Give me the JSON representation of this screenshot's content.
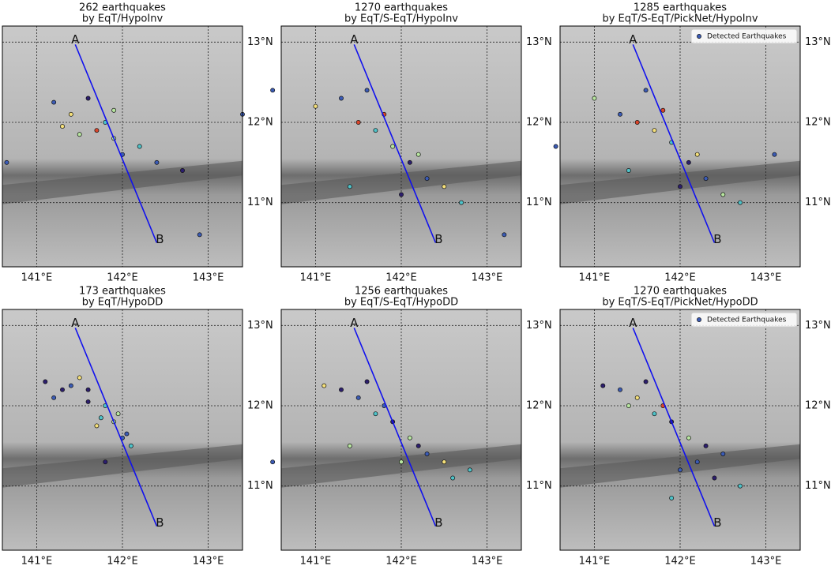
{
  "chart_data": [
    {
      "type": "scatter",
      "title": "262 earthquakes",
      "subtitle": "by EqT/HypoInv",
      "x": [
        141.2,
        141.4,
        141.6,
        141.8,
        141.9,
        142.0,
        141.7,
        141.5,
        142.2,
        142.4,
        141.3,
        140.65,
        143.4,
        142.9,
        142.7,
        141.9
      ],
      "y": [
        12.25,
        12.1,
        12.3,
        12.0,
        11.8,
        11.6,
        11.9,
        11.85,
        11.7,
        11.5,
        11.95,
        11.5,
        12.1,
        10.6,
        11.4,
        12.15
      ],
      "colors": [
        "#3b5bb5",
        "#f5e07a",
        "#2c1e6e",
        "#4fc3c9",
        "#b8e6a0",
        "#3b5bb5",
        "#d9452b",
        "#b8e6a0",
        "#4fc3c9",
        "#3b5bb5",
        "#f5e07a",
        "#3b5bb5",
        "#3b5bb5",
        "#3b5bb5",
        "#2c1e6e",
        "#b8e6a0"
      ]
    },
    {
      "type": "scatter",
      "title": "1270 earthquakes",
      "subtitle": "by EqT/S-EqT/HypoInv",
      "x": [
        141.0,
        141.3,
        141.5,
        141.7,
        141.9,
        142.1,
        142.3,
        142.5,
        142.7,
        141.6,
        141.8,
        142.0,
        142.2,
        140.5,
        143.2,
        141.4
      ],
      "y": [
        12.2,
        12.3,
        12.0,
        11.9,
        11.7,
        11.5,
        11.3,
        11.2,
        11.0,
        12.4,
        12.1,
        11.1,
        11.6,
        12.4,
        10.6,
        11.2
      ],
      "colors": [
        "#f5e07a",
        "#3b5bb5",
        "#d9452b",
        "#4fc3c9",
        "#b8e6a0",
        "#2c1e6e",
        "#3b5bb5",
        "#f5e07a",
        "#4fc3c9",
        "#3b5bb5",
        "#d9452b",
        "#2c1e6e",
        "#b8e6a0",
        "#3b5bb5",
        "#3b5bb5",
        "#4fc3c9"
      ]
    },
    {
      "type": "scatter",
      "title": "1285 earthquakes",
      "subtitle": "by EqT/S-EqT/PickNet/HypoInv",
      "x": [
        141.0,
        141.3,
        141.5,
        141.7,
        141.9,
        142.1,
        142.3,
        142.5,
        142.7,
        141.6,
        141.8,
        142.0,
        142.2,
        140.55,
        143.1,
        141.4
      ],
      "y": [
        12.3,
        12.1,
        12.0,
        11.9,
        11.75,
        11.5,
        11.3,
        11.1,
        11.0,
        12.4,
        12.15,
        11.2,
        11.6,
        11.7,
        11.6,
        11.4
      ],
      "colors": [
        "#b8e6a0",
        "#3b5bb5",
        "#d9452b",
        "#f5e07a",
        "#4fc3c9",
        "#2c1e6e",
        "#3b5bb5",
        "#b8e6a0",
        "#4fc3c9",
        "#3b5bb5",
        "#d9452b",
        "#2c1e6e",
        "#f5e07a",
        "#3b5bb5",
        "#3b5bb5",
        "#4fc3c9"
      ],
      "series_name": "Detected Earthquakes",
      "legend": "upper right"
    },
    {
      "type": "scatter",
      "title": "173 earthquakes",
      "subtitle": "by EqT/HypoDD",
      "x": [
        141.1,
        141.2,
        141.5,
        141.6,
        141.8,
        141.9,
        142.0,
        141.7,
        141.3,
        142.1,
        141.8,
        141.95,
        141.4,
        141.6,
        141.75,
        142.05
      ],
      "y": [
        12.3,
        12.1,
        12.35,
        12.2,
        12.0,
        11.8,
        11.6,
        11.75,
        12.2,
        11.5,
        11.3,
        11.9,
        12.25,
        12.05,
        11.85,
        11.65
      ],
      "colors": [
        "#2c1e6e",
        "#3b5bb5",
        "#f5e07a",
        "#2c1e6e",
        "#4fc3c9",
        "#b8e6a0",
        "#3b5bb5",
        "#f5e07a",
        "#2c1e6e",
        "#4fc3c9",
        "#2c1e6e",
        "#b8e6a0",
        "#3b5bb5",
        "#2c1e6e",
        "#4fc3c9",
        "#3b5bb5"
      ]
    },
    {
      "type": "scatter",
      "title": "1256 earthquakes",
      "subtitle": "by EqT/S-EqT/HypoDD",
      "x": [
        141.1,
        141.3,
        141.5,
        141.7,
        141.9,
        142.1,
        142.3,
        142.5,
        142.8,
        141.6,
        141.8,
        142.0,
        142.2,
        140.5,
        142.6,
        141.4
      ],
      "y": [
        12.25,
        12.2,
        12.1,
        11.9,
        11.8,
        11.6,
        11.4,
        11.3,
        11.2,
        12.3,
        12.0,
        11.3,
        11.5,
        11.3,
        11.1,
        11.5
      ],
      "colors": [
        "#f5e07a",
        "#2c1e6e",
        "#3b5bb5",
        "#4fc3c9",
        "#2c1e6e",
        "#b8e6a0",
        "#3b5bb5",
        "#f5e07a",
        "#4fc3c9",
        "#2c1e6e",
        "#3b5bb5",
        "#b8e6a0",
        "#2c1e6e",
        "#3b5bb5",
        "#4fc3c9",
        "#b8e6a0"
      ]
    },
    {
      "type": "scatter",
      "title": "1270 earthquakes",
      "subtitle": "by EqT/S-EqT/PickNet/HypoDD",
      "x": [
        141.1,
        141.3,
        141.5,
        141.7,
        141.9,
        142.1,
        142.2,
        142.4,
        142.7,
        141.6,
        141.8,
        142.0,
        142.3,
        141.9,
        142.5,
        141.4
      ],
      "y": [
        12.25,
        12.2,
        12.1,
        11.9,
        11.8,
        11.6,
        11.3,
        11.1,
        11.0,
        12.3,
        12.0,
        11.2,
        11.5,
        10.85,
        11.4,
        12.0
      ],
      "colors": [
        "#2c1e6e",
        "#3b5bb5",
        "#f5e07a",
        "#4fc3c9",
        "#2c1e6e",
        "#b8e6a0",
        "#3b5bb5",
        "#2c1e6e",
        "#4fc3c9",
        "#2c1e6e",
        "#d9452b",
        "#3b5bb5",
        "#2c1e6e",
        "#4fc3c9",
        "#3b5bb5",
        "#b8e6a0"
      ],
      "series_name": "Detected Earthquakes",
      "legend": "upper right"
    }
  ],
  "shared": {
    "xlim": [
      140.6,
      143.4
    ],
    "ylim": [
      10.2,
      13.2
    ],
    "xticks": [
      {
        "value": 141,
        "label": "141°E"
      },
      {
        "value": 142,
        "label": "142°E"
      },
      {
        "value": 143,
        "label": "143°E"
      }
    ],
    "yticks": [
      {
        "value": 11,
        "label": "11°N"
      },
      {
        "value": 12,
        "label": "12°N"
      },
      {
        "value": 13,
        "label": "13°N"
      }
    ],
    "grid": true,
    "profile": {
      "start_label": "A",
      "end_label": "B",
      "x": [
        141.45,
        142.4
      ],
      "y": [
        12.97,
        10.5
      ],
      "color": "#1010ee"
    }
  }
}
